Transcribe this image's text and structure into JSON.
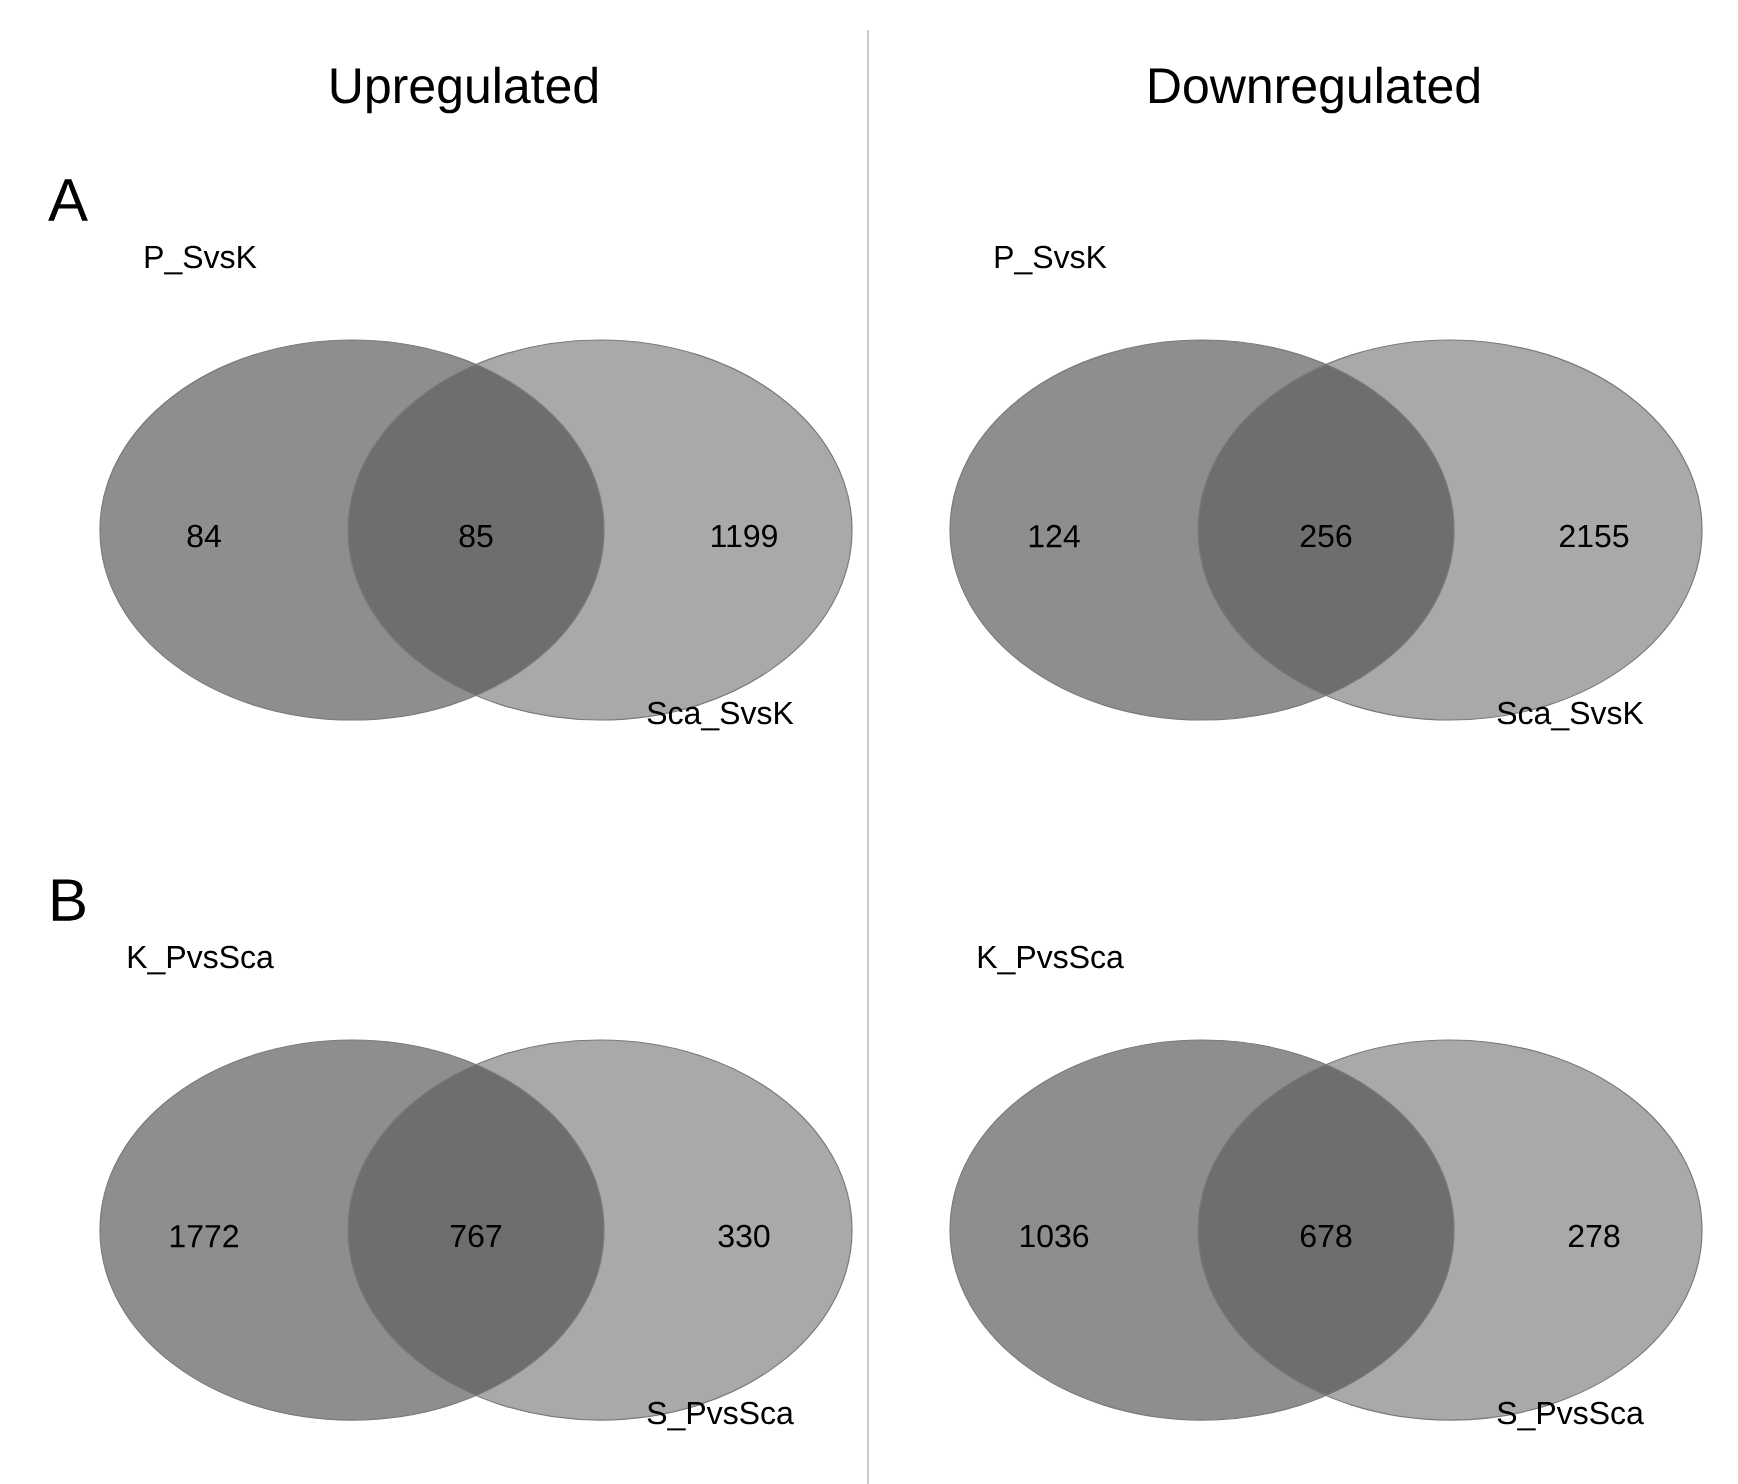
{
  "chart_data": [
    {
      "type": "other",
      "title": "Upregulated",
      "annotations": [
        "A"
      ],
      "categories": [
        "P_SvsK",
        null,
        "Sca_SvsK"
      ],
      "values": [
        84,
        85,
        1199
      ],
      "data_labels": true,
      "colors": [
        "#8e8e8e",
        "#6e6e6e",
        "#a9a9a9"
      ]
    },
    {
      "type": "other",
      "title": "Downregulated",
      "categories": [
        "P_SvsK",
        null,
        "Sca_SvsK"
      ],
      "values": [
        124,
        256,
        2155
      ],
      "data_labels": true,
      "colors": [
        "#8e8e8e",
        "#6e6e6e",
        "#a9a9a9"
      ]
    },
    {
      "type": "other",
      "annotations": [
        "B"
      ],
      "categories": [
        "K_PvsSca",
        null,
        "S_PvsSca"
      ],
      "values": [
        1772,
        767,
        330
      ],
      "data_labels": true,
      "colors": [
        "#8e8e8e",
        "#6e6e6e",
        "#a9a9a9"
      ]
    },
    {
      "type": "other",
      "categories": [
        "K_PvsSca",
        null,
        "S_PvsSca"
      ],
      "values": [
        1036,
        678,
        278
      ],
      "data_labels": true,
      "colors": [
        "#8e8e8e",
        "#6e6e6e",
        "#a9a9a9"
      ]
    }
  ]
}
